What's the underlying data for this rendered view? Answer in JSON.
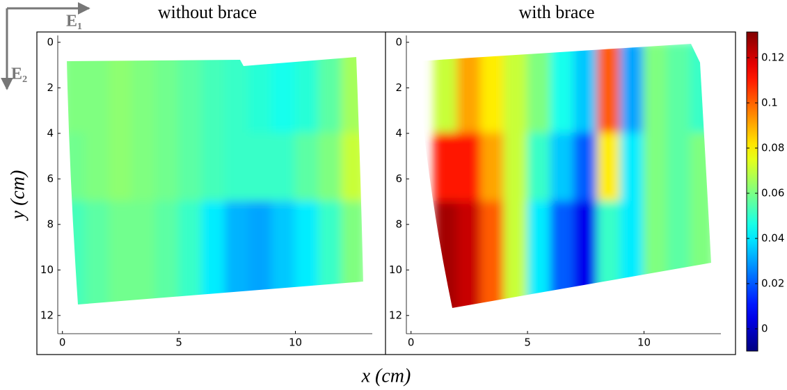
{
  "figure": {
    "xlabel": "x (cm)",
    "ylabel": "y (cm)",
    "basis": [
      "E₁",
      "E₂"
    ]
  },
  "colorbar": {
    "colormap": "jet",
    "clim": [
      -0.01,
      0.13
    ],
    "ticks": [
      0,
      0.02,
      0.04,
      0.06,
      0.08,
      0.1,
      0.12
    ]
  },
  "chart_data": [
    {
      "type": "heatmap",
      "title": "without brace",
      "xlim": [
        -0.2,
        13.3
      ],
      "ylim": [
        -0.3,
        12.8
      ],
      "xticks": [
        0,
        5,
        10
      ],
      "yticks": [
        0,
        2,
        4,
        6,
        8,
        10,
        12
      ],
      "xbins": [
        0,
        1,
        2,
        3,
        4,
        5,
        6,
        7,
        8,
        9,
        10,
        11,
        12,
        13
      ],
      "ybins": [
        0,
        4,
        7,
        12
      ],
      "values": [
        [
          0.06,
          0.06,
          0.062,
          0.06,
          0.058,
          0.055,
          0.052,
          0.05,
          0.048,
          0.045,
          0.048,
          0.055,
          0.065
        ],
        [
          0.058,
          0.06,
          0.062,
          0.06,
          0.058,
          0.055,
          0.052,
          0.05,
          0.05,
          0.05,
          0.055,
          0.06,
          0.07
        ],
        [
          0.052,
          0.055,
          0.058,
          0.058,
          0.055,
          0.05,
          0.04,
          0.032,
          0.03,
          0.035,
          0.04,
          0.05,
          0.06
        ]
      ]
    },
    {
      "type": "heatmap",
      "title": "with brace",
      "xlim": [
        -0.2,
        13.3
      ],
      "ylim": [
        -0.3,
        12.8
      ],
      "xticks": [
        0,
        5,
        10
      ],
      "yticks": [
        0,
        2,
        4,
        6,
        8,
        10,
        12
      ],
      "xbins": [
        0,
        1,
        2,
        3,
        4,
        5,
        6,
        7,
        8,
        9,
        10,
        11,
        12,
        13
      ],
      "ybins": [
        0,
        4,
        7,
        12
      ],
      "values": [
        [
          null,
          0.07,
          0.09,
          0.08,
          0.07,
          0.06,
          0.045,
          0.035,
          0.1,
          0.03,
          0.06,
          0.055,
          0.05
        ],
        [
          null,
          0.11,
          0.11,
          0.09,
          0.07,
          0.05,
          0.035,
          0.02,
          0.08,
          0.04,
          0.06,
          0.055,
          0.06
        ],
        [
          null,
          0.125,
          0.12,
          0.1,
          0.07,
          0.04,
          0.02,
          0.005,
          0.05,
          0.04,
          0.06,
          0.055,
          0.06
        ]
      ]
    }
  ]
}
